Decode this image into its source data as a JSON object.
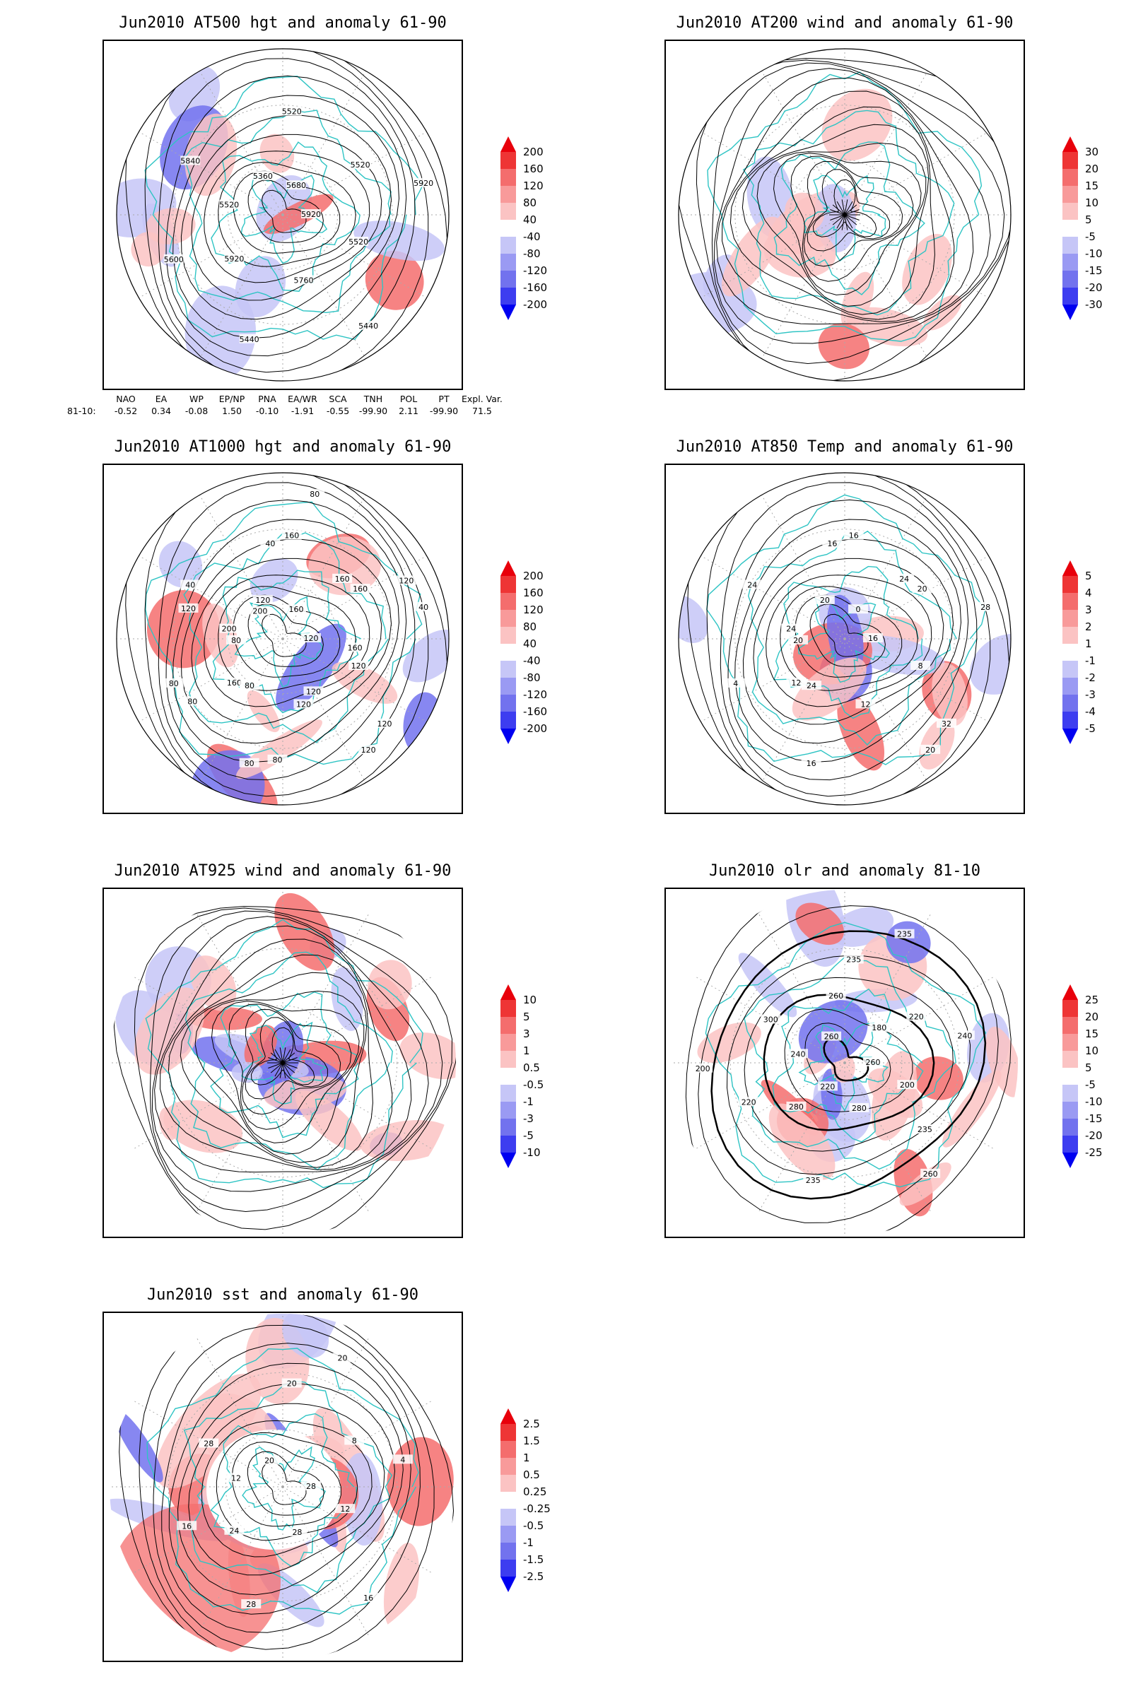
{
  "panels": [
    {
      "id": "p1",
      "title": "Jun2010 AT500 hgt and anomaly 61-90",
      "labels": [
        "5920",
        "5920",
        "5520",
        "5440",
        "5520",
        "5520",
        "5440",
        "5360",
        "5520",
        "5600",
        "5680",
        "5760",
        "5840",
        "5920"
      ],
      "colorbar": {
        "ticks": [
          "200",
          "160",
          "120",
          "80",
          "40",
          "-40",
          "-80",
          "-120",
          "-160",
          "-200"
        ]
      }
    },
    {
      "id": "p2",
      "title": "Jun2010 AT200 wind and anomaly 61-90",
      "labels": [],
      "colorbar": {
        "ticks": [
          "30",
          "20",
          "15",
          "10",
          "5",
          "-5",
          "-10",
          "-15",
          "-20",
          "-30"
        ]
      }
    },
    {
      "id": "p3",
      "title": "Jun2010 AT1000 hgt and anomaly 61-90",
      "labels": [
        "120",
        "160",
        "160",
        "120",
        "200",
        "160",
        "80",
        "120",
        "120",
        "80",
        "160",
        "120",
        "40",
        "40",
        "80",
        "40",
        "120",
        "80",
        "160",
        "80",
        "200",
        "160",
        "80",
        "80",
        "120",
        "120",
        "120"
      ],
      "colorbar": {
        "ticks": [
          "200",
          "160",
          "120",
          "80",
          "40",
          "-40",
          "-80",
          "-120",
          "-160",
          "-200"
        ]
      }
    },
    {
      "id": "p4",
      "title": "Jun2010 AT850 Temp and anomaly 61-90",
      "labels": [
        "16",
        "12",
        "16",
        "20",
        "24",
        "20",
        "16",
        "20",
        "8",
        "4",
        "0",
        "12",
        "24",
        "28",
        "24",
        "16",
        "32",
        "20",
        "24"
      ],
      "colorbar": {
        "ticks": [
          "5",
          "4",
          "3",
          "2",
          "1",
          "-1",
          "-2",
          "-3",
          "-4",
          "-5"
        ]
      }
    },
    {
      "id": "p5",
      "title": "Jun2010 AT925 wind and anomaly 61-90",
      "labels": [],
      "colorbar": {
        "ticks": [
          "10",
          "5",
          "3",
          "1",
          "0.5",
          "-0.5",
          "-1",
          "-3",
          "-5",
          "-10"
        ]
      }
    },
    {
      "id": "p6",
      "title": "Jun2010 olr and anomaly 81-10",
      "labels": [
        "260",
        "280",
        "235",
        "260",
        "240",
        "220",
        "235",
        "260",
        "200",
        "220",
        "235",
        "280",
        "300",
        "240",
        "220",
        "260",
        "235",
        "200",
        "180"
      ],
      "colorbar": {
        "ticks": [
          "25",
          "20",
          "15",
          "10",
          "5",
          "-5",
          "-10",
          "-15",
          "-20",
          "-25"
        ]
      }
    },
    {
      "id": "p7",
      "title": "Jun2010 sst and anomaly 61-90",
      "labels": [
        "28",
        "24",
        "20",
        "16",
        "12",
        "8",
        "28",
        "20",
        "12",
        "16",
        "20",
        "28",
        "28",
        "4"
      ],
      "colorbar": {
        "ticks": [
          "2.5",
          "1.5",
          "1",
          "0.5",
          "0.25",
          "-0.25",
          "-0.5",
          "-1",
          "-1.5",
          "-2.5"
        ]
      }
    }
  ],
  "teleconnections": {
    "headers": [
      "NAO",
      "EA",
      "WP",
      "EP/NP",
      "PNA",
      "EA/WR",
      "SCA",
      "TNH",
      "POL",
      "PT",
      "Expl. Var."
    ],
    "row_label": "81-10:",
    "values": [
      "-0.52",
      "0.34",
      "-0.08",
      "1.50",
      "-0.10",
      "-1.91",
      "-0.55",
      "-99.90",
      "2.11",
      "-99.90",
      "71.5"
    ]
  },
  "colors": {
    "coast": "#2ec4c4",
    "pos_strong": "#e8000b",
    "pos_mid": "#f46d6d",
    "pos_light": "#fbc3c3",
    "neg_light": "#c6c6f7",
    "neg_mid": "#7272ee",
    "neg_strong": "#0000f0",
    "contour": "#000000"
  }
}
